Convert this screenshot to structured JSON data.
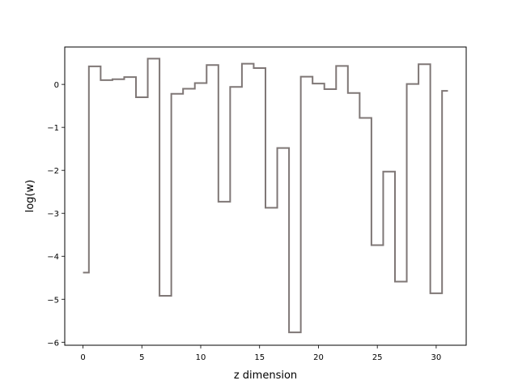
{
  "chart_data": {
    "type": "line",
    "drawstyle": "steps-mid",
    "title": "",
    "xlabel": "z dimension",
    "ylabel": "log(w)",
    "xlim": [
      -1.55,
      32.55
    ],
    "ylim": [
      -6.07,
      0.87
    ],
    "x_ticks": [
      0,
      5,
      10,
      15,
      20,
      25,
      30
    ],
    "y_ticks": [
      -6,
      -5,
      -4,
      -3,
      -2,
      -1,
      0
    ],
    "grid": false,
    "legend": "none",
    "series": [
      {
        "color": "#7f7776",
        "x": [
          0,
          1,
          2,
          3,
          4,
          5,
          6,
          7,
          8,
          9,
          10,
          11,
          12,
          13,
          14,
          15,
          16,
          17,
          18,
          19,
          20,
          21,
          22,
          23,
          24,
          25,
          26,
          27,
          28,
          29,
          30,
          31
        ],
        "y": [
          -4.38,
          0.42,
          0.1,
          0.12,
          0.17,
          -0.3,
          0.6,
          -4.92,
          -0.22,
          -0.1,
          0.03,
          0.45,
          -2.73,
          -0.06,
          0.48,
          0.38,
          -2.87,
          -1.48,
          -5.77,
          0.18,
          0.02,
          -0.11,
          0.43,
          -0.2,
          -0.78,
          -3.74,
          -2.03,
          -4.59,
          0.01,
          0.47,
          -4.86,
          -0.15
        ]
      }
    ]
  }
}
